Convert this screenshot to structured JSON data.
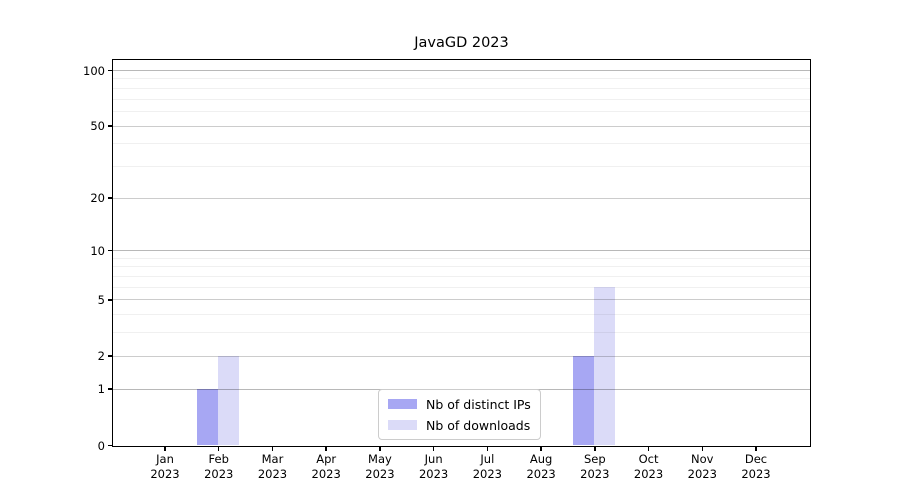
{
  "chart_data": {
    "type": "bar",
    "title": "JavaGD 2023",
    "categories": [
      "Jan 2023",
      "Feb 2023",
      "Mar 2023",
      "Apr 2023",
      "May 2023",
      "Jun 2023",
      "Jul 2023",
      "Aug 2023",
      "Sep 2023",
      "Oct 2023",
      "Nov 2023",
      "Dec 2023"
    ],
    "x_tick_labels": [
      [
        "Jan",
        "2023"
      ],
      [
        "Feb",
        "2023"
      ],
      [
        "Mar",
        "2023"
      ],
      [
        "Apr",
        "2023"
      ],
      [
        "May",
        "2023"
      ],
      [
        "Jun",
        "2023"
      ],
      [
        "Jul",
        "2023"
      ],
      [
        "Aug",
        "2023"
      ],
      [
        "Sep",
        "2023"
      ],
      [
        "Oct",
        "2023"
      ],
      [
        "Nov",
        "2023"
      ],
      [
        "Dec",
        "2023"
      ]
    ],
    "series": [
      {
        "name": "Nb of distinct IPs",
        "color": "#a7a7f3",
        "values": [
          0,
          1,
          0,
          0,
          0,
          0,
          0,
          0,
          2,
          0,
          0,
          0
        ]
      },
      {
        "name": "Nb of downloads",
        "color": "#dbdbf8",
        "values": [
          0,
          2,
          0,
          0,
          0,
          0,
          0,
          0,
          6,
          0,
          0,
          0
        ]
      }
    ],
    "yscale": "log10(value+1)",
    "y_tick_labels": [
      0,
      1,
      2,
      5,
      10,
      20,
      50,
      100
    ],
    "y_minor_gridlines": [
      3,
      4,
      6,
      7,
      8,
      9,
      30,
      40,
      60,
      70,
      80,
      90
    ],
    "ylim": [
      0,
      113
    ],
    "grid": "horizontal",
    "legend_position": "bottom-center-inside",
    "colors": {
      "spine": "#000000",
      "major_grid": "#cccccc",
      "minor_grid": "#efefef",
      "background": "#ffffff"
    }
  }
}
